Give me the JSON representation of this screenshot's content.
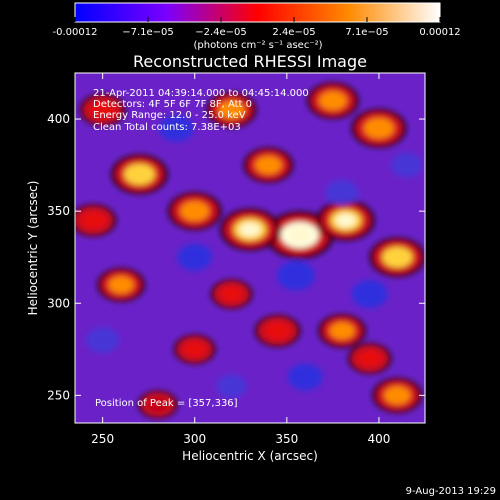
{
  "colorbar": {
    "tick_labels": [
      "-0.00012",
      "−7.1e−05",
      "−2.4e−05",
      "2.4e−05",
      "7.1e−05",
      "0.00012"
    ],
    "units": "(photons cm⁻² s⁻¹ asec⁻²)",
    "colors": [
      "#0000ff",
      "#7a00ff",
      "#ff0000",
      "#ff8a00",
      "#ffffff"
    ]
  },
  "chart_data": {
    "type": "heatmap",
    "title": "Reconstructed RHESSI Image",
    "xlabel": "Heliocentric X (arcsec)",
    "ylabel": "Heliocentric Y (arcsec)",
    "xlim": [
      235,
      425
    ],
    "ylim": [
      235,
      425
    ],
    "x_ticks": [
      250,
      300,
      350,
      400
    ],
    "y_ticks": [
      250,
      300,
      350,
      400
    ],
    "annotations": [
      "21-Apr-2011 04:39:14.000 to 04:45:14.000",
      "Detectors: 4F 5F 6F 7F 8F, Att 0",
      "Energy Range: 12.0 - 25.0 keV",
      "Clean     Total counts: 7.38E+03"
    ],
    "peak_label": "Position of Peak = [357,336]",
    "peak": [
      357,
      336
    ],
    "blobs": [
      {
        "x": 357,
        "y": 337,
        "value": 1.0
      },
      {
        "x": 330,
        "y": 340,
        "value": 0.8
      },
      {
        "x": 382,
        "y": 345,
        "value": 0.75
      },
      {
        "x": 270,
        "y": 370,
        "value": 0.72
      },
      {
        "x": 300,
        "y": 350,
        "value": 0.65
      },
      {
        "x": 410,
        "y": 325,
        "value": 0.7
      },
      {
        "x": 400,
        "y": 395,
        "value": 0.68
      },
      {
        "x": 375,
        "y": 410,
        "value": 0.6
      },
      {
        "x": 320,
        "y": 405,
        "value": 0.55
      },
      {
        "x": 250,
        "y": 405,
        "value": 0.45
      },
      {
        "x": 340,
        "y": 375,
        "value": 0.55
      },
      {
        "x": 260,
        "y": 310,
        "value": 0.5
      },
      {
        "x": 245,
        "y": 345,
        "value": 0.45
      },
      {
        "x": 345,
        "y": 285,
        "value": 0.45
      },
      {
        "x": 380,
        "y": 285,
        "value": 0.5
      },
      {
        "x": 300,
        "y": 275,
        "value": 0.35
      },
      {
        "x": 280,
        "y": 245,
        "value": 0.3
      },
      {
        "x": 410,
        "y": 250,
        "value": 0.55
      },
      {
        "x": 395,
        "y": 270,
        "value": 0.4
      },
      {
        "x": 320,
        "y": 305,
        "value": 0.35
      },
      {
        "x": 355,
        "y": 315,
        "value": -0.55
      },
      {
        "x": 300,
        "y": 325,
        "value": -0.45
      },
      {
        "x": 380,
        "y": 360,
        "value": -0.4
      },
      {
        "x": 290,
        "y": 395,
        "value": -0.45
      },
      {
        "x": 395,
        "y": 305,
        "value": -0.5
      },
      {
        "x": 250,
        "y": 280,
        "value": -0.4
      },
      {
        "x": 360,
        "y": 260,
        "value": -0.45
      },
      {
        "x": 320,
        "y": 255,
        "value": -0.3
      },
      {
        "x": 415,
        "y": 375,
        "value": -0.35
      }
    ]
  },
  "footer": {
    "date": "9-Aug-2013 19:29"
  }
}
